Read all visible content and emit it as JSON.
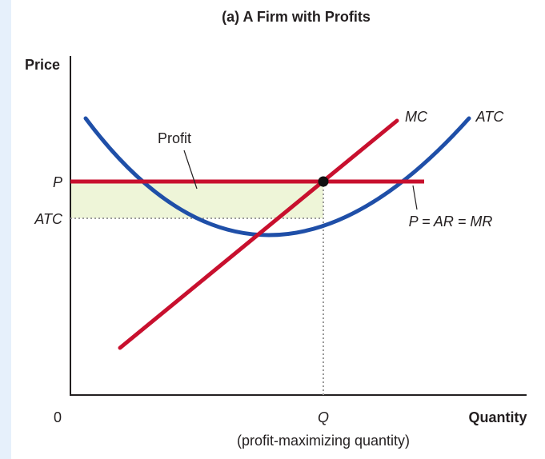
{
  "title": "(a) A Firm with Profits",
  "axes": {
    "y_title": "Price",
    "x_title": "Quantity",
    "origin": "0",
    "x_tick_q": "Q",
    "x_tick_q_note": "(profit-maximizing quantity)",
    "y_tick_p": "P",
    "y_tick_atc": "ATC"
  },
  "curves": {
    "mc_label": "MC",
    "atc_label": "ATC",
    "demand_label": "P = AR = MR"
  },
  "region": {
    "label": "Profit"
  },
  "colors": {
    "mc": "#c8102e",
    "price_line": "#c8102e",
    "atc": "#1f4fa8",
    "profit_fill": "#eef5d8",
    "axis": "#231f20",
    "guide": "#9a9a9a",
    "point": "#111111",
    "background_strip": "#e6f0fb"
  }
}
